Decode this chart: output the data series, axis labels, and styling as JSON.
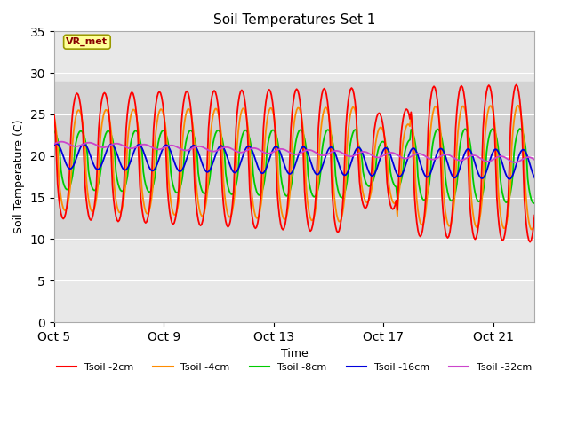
{
  "title": "Soil Temperatures Set 1",
  "xlabel": "Time",
  "ylabel": "Soil Temperature (C)",
  "ylim": [
    0,
    35
  ],
  "x_tick_labels": [
    "Oct 5",
    "Oct 9",
    "Oct 13",
    "Oct 17",
    "Oct 21"
  ],
  "x_tick_positions": [
    0,
    4,
    8,
    12,
    16
  ],
  "band_low": 10,
  "band_high": 29,
  "band_color": "#d3d3d3",
  "axes_bg": "#e8e8e8",
  "line_colors": {
    "2cm": "#ff0000",
    "4cm": "#ff8c00",
    "8cm": "#00cc00",
    "16cm": "#0000dd",
    "32cm": "#cc44cc"
  },
  "legend_labels": [
    "Tsoil -2cm",
    "Tsoil -4cm",
    "Tsoil -8cm",
    "Tsoil -16cm",
    "Tsoil -32cm"
  ],
  "vr_label": "VR_met",
  "bg_color": "#ffffff",
  "grid_color": "#ffffff",
  "annotation_box_facecolor": "#ffff99",
  "annotation_box_edgecolor": "#999900"
}
